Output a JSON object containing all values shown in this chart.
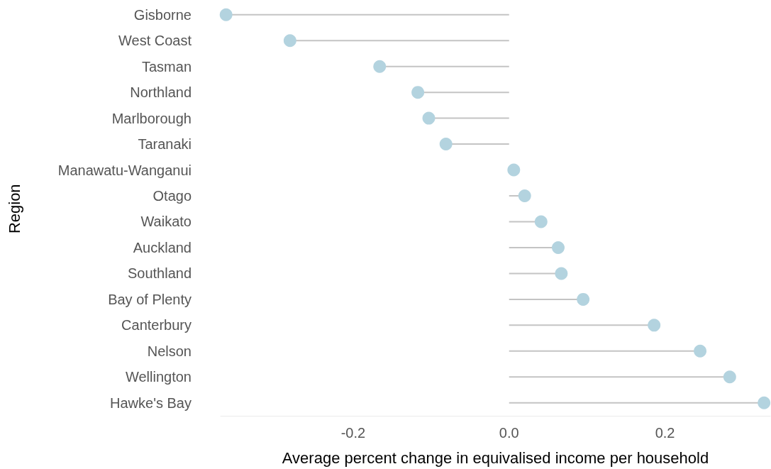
{
  "chart_data": {
    "type": "lollipop",
    "orientation": "horizontal",
    "xlabel": "Average percent change in equivalised income per household",
    "ylabel": "Region",
    "categories": [
      "Gisborne",
      "West Coast",
      "Tasman",
      "Northland",
      "Marlborough",
      "Taranaki",
      "Manawatu-Wanganui",
      "Otago",
      "Waikato",
      "Auckland",
      "Southland",
      "Bay of Plenty",
      "Canterbury",
      "Nelson",
      "Wellington",
      "Hawke's Bay"
    ],
    "values": [
      -0.363,
      -0.281,
      -0.166,
      -0.117,
      -0.103,
      -0.081,
      0.006,
      0.02,
      0.041,
      0.063,
      0.067,
      0.095,
      0.186,
      0.245,
      0.283,
      0.327
    ],
    "color": "#b3d3df",
    "xticks": [
      {
        "value": -0.2,
        "label": "-0.2"
      },
      {
        "value": 0,
        "label": "0.0"
      },
      {
        "value": 0.2,
        "label": "0.2"
      }
    ],
    "xlim": [
      -0.37,
      0.335
    ],
    "grid": false
  }
}
